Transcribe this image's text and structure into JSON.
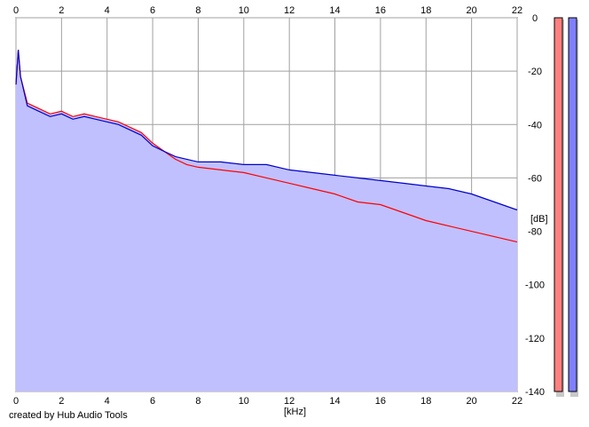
{
  "footer": {
    "credit": "created by Hub Audio Tools"
  },
  "chart_data": {
    "type": "area",
    "xlabel": "[kHz]",
    "ylabel": "[dB]",
    "xlim": [
      0,
      22
    ],
    "ylim": [
      -140,
      0
    ],
    "x_ticks": [
      "0",
      "2",
      "4",
      "6",
      "8",
      "10",
      "12",
      "14",
      "16",
      "18",
      "20",
      "22"
    ],
    "y_ticks": [
      "0",
      "-20",
      "-40",
      "-60",
      "-80",
      "-100",
      "-120",
      "-140"
    ],
    "grid": true,
    "fill_color": "#c0c0ff",
    "series": [
      {
        "color": "#ff0000",
        "x": [
          0.0,
          0.1,
          0.2,
          0.5,
          1.0,
          1.5,
          2.0,
          2.5,
          3.0,
          3.5,
          4.0,
          4.5,
          5.0,
          5.5,
          6.0,
          6.5,
          7.0,
          7.5,
          8.0,
          9.0,
          10.0,
          11.0,
          12.0,
          13.0,
          14.0,
          15.0,
          16.0,
          17.0,
          18.0,
          19.0,
          20.0,
          21.0,
          22.0
        ],
        "y": [
          -25,
          -12,
          -22,
          -32,
          -34,
          -36,
          -35,
          -37,
          -36,
          -37,
          -38,
          -39,
          -41,
          -43,
          -47,
          -50,
          -53,
          -55,
          -56,
          -57,
          -58,
          -60,
          -62,
          -64,
          -66,
          -69,
          -70,
          -73,
          -76,
          -78,
          -80,
          -82,
          -84
        ]
      },
      {
        "color": "#0000cc",
        "x": [
          0.0,
          0.1,
          0.2,
          0.5,
          1.0,
          1.5,
          2.0,
          2.5,
          3.0,
          3.5,
          4.0,
          4.5,
          5.0,
          5.5,
          6.0,
          6.5,
          7.0,
          7.5,
          8.0,
          9.0,
          10.0,
          11.0,
          12.0,
          13.0,
          14.0,
          15.0,
          16.0,
          17.0,
          18.0,
          19.0,
          20.0,
          21.0,
          22.0
        ],
        "y": [
          -25,
          -12,
          -22,
          -33,
          -35,
          -37,
          -36,
          -38,
          -37,
          -38,
          -39,
          -40,
          -42,
          -44,
          -48,
          -50,
          -52,
          -53,
          -54,
          -54,
          -55,
          -55,
          -57,
          -58,
          -59,
          -60,
          -61,
          -62,
          -63,
          -64,
          -66,
          -69,
          -72
        ]
      }
    ]
  },
  "meters": [
    {
      "color": "#ff8080"
    },
    {
      "color": "#8080ff"
    }
  ]
}
